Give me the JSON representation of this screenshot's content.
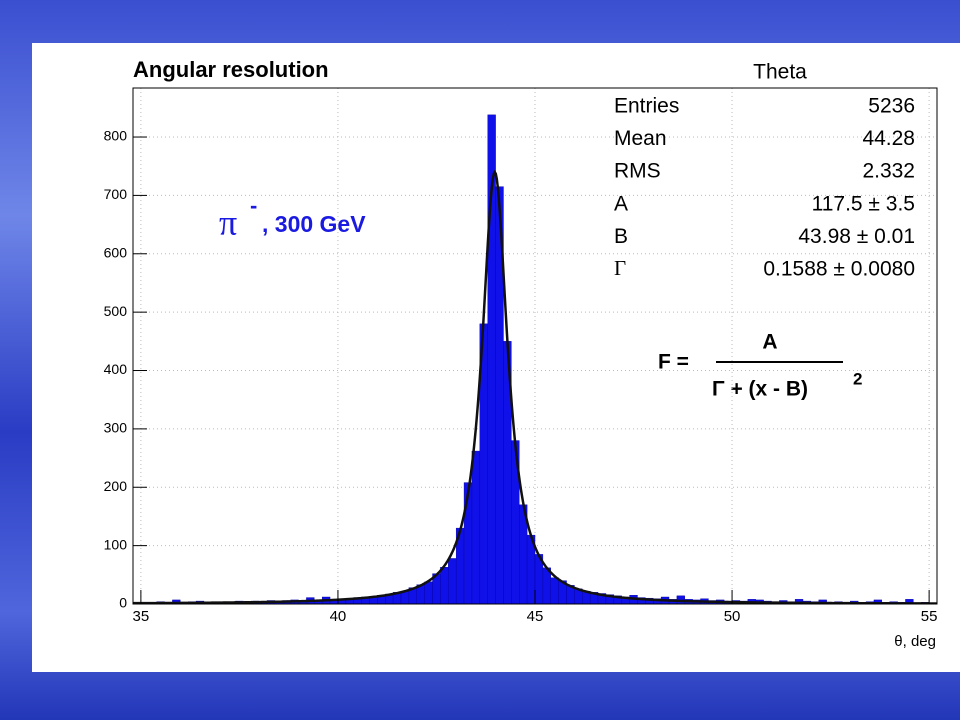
{
  "chart_data": {
    "type": "histogram",
    "title": "Angular resolution",
    "hist_name": "Theta",
    "xlabel": "θ, deg",
    "annotation": {
      "symbol": "π",
      "sup": "-",
      "text": ", 300 GeV"
    },
    "formula": {
      "lhs": "F =",
      "numerator": "A",
      "denominator": "Γ + (x - B)",
      "power": "2"
    },
    "stats": [
      [
        "Entries",
        "5236"
      ],
      [
        "Mean",
        "44.28"
      ],
      [
        "RMS",
        "2.332"
      ],
      [
        "A",
        "117.5 ± 3.5"
      ],
      [
        "B",
        "43.98 ± 0.01"
      ],
      [
        "Γ",
        "0.1588 ± 0.0080"
      ]
    ],
    "fit": {
      "A": 117.5,
      "B": 43.98,
      "gamma": 0.1588,
      "color": "#111111"
    },
    "color": "#1010e8",
    "bins": [
      34.8,
      35.0,
      35.2,
      35.4,
      35.6,
      35.8,
      36.0,
      36.2,
      36.4,
      36.6,
      36.8,
      37.0,
      37.2,
      37.4,
      37.6,
      37.8,
      38.0,
      38.2,
      38.4,
      38.6,
      38.8,
      39.0,
      39.2,
      39.4,
      39.6,
      39.8,
      40.0,
      40.2,
      40.4,
      40.6,
      40.8,
      41.0,
      41.2,
      41.4,
      41.6,
      41.8,
      42.0,
      42.2,
      42.4,
      42.6,
      42.8,
      43.0,
      43.2,
      43.4,
      43.6,
      43.8,
      44.0,
      44.2,
      44.4,
      44.6,
      44.8,
      45.0,
      45.2,
      45.4,
      45.6,
      45.8,
      46.0,
      46.2,
      46.4,
      46.6,
      46.8,
      47.0,
      47.2,
      47.4,
      47.6,
      47.8,
      48.0,
      48.2,
      48.4,
      48.6,
      48.8,
      49.0,
      49.2,
      49.4,
      49.6,
      49.8,
      50.0,
      50.2,
      50.4,
      50.6,
      50.8,
      51.0,
      51.2,
      51.4,
      51.6,
      51.8,
      52.0,
      52.2,
      52.4,
      52.6,
      52.8,
      53.0,
      53.2,
      53.4,
      53.6,
      53.8,
      54.0,
      54.2,
      54.4,
      54.6,
      54.8,
      55.0,
      55.2
    ],
    "values": [
      2,
      3,
      2,
      4,
      3,
      7,
      3,
      4,
      5,
      3,
      4,
      4,
      3,
      5,
      4,
      5,
      4,
      6,
      5,
      6,
      7,
      6,
      11,
      7,
      12,
      8,
      9,
      10,
      11,
      12,
      13,
      15,
      17,
      20,
      22,
      28,
      33,
      38,
      52,
      63,
      78,
      130,
      208,
      262,
      480,
      838,
      715,
      450,
      280,
      170,
      118,
      85,
      62,
      45,
      40,
      32,
      26,
      22,
      20,
      18,
      16,
      14,
      12,
      15,
      11,
      10,
      9,
      12,
      8,
      14,
      8,
      7,
      9,
      6,
      7,
      5,
      6,
      5,
      8,
      7,
      5,
      4,
      6,
      4,
      8,
      5,
      4,
      7,
      3,
      4,
      3,
      5,
      3,
      4,
      7,
      3,
      4,
      3,
      8,
      2,
      3,
      2
    ],
    "xlim": [
      34.8,
      55.2
    ],
    "ylim": [
      0,
      884
    ],
    "xticks": [
      35,
      40,
      45,
      50,
      55
    ],
    "yticks": [
      0,
      100,
      200,
      300,
      400,
      500,
      600,
      700,
      800
    ],
    "grid": true
  }
}
